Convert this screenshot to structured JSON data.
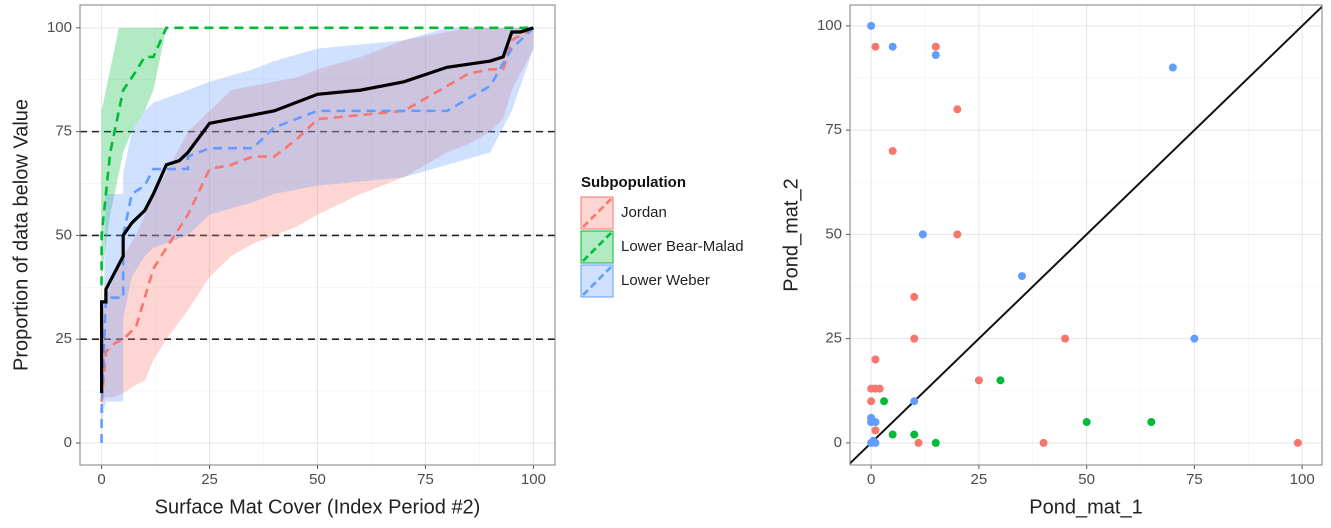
{
  "chart_data": [
    {
      "type": "line",
      "xlabel": "Surface Mat Cover (Index Period #2)",
      "ylabel": "Proportion of data below Value",
      "xlim": [
        -5,
        105
      ],
      "ylim": [
        -5.3,
        105.5
      ],
      "xticks": [
        0,
        25,
        50,
        75,
        100
      ],
      "yticks": [
        0,
        25,
        50,
        75,
        100
      ],
      "grid": true,
      "minor_grid": true,
      "hlines": [
        25,
        50,
        75
      ],
      "legend_title": "Subpopulation",
      "legend": "right",
      "series": [
        {
          "name": "Jordan",
          "color": "#F8766D",
          "linestyle": "dashed",
          "x": [
            0,
            1,
            3,
            5,
            8,
            10,
            12,
            15,
            20,
            25,
            30,
            35,
            40,
            45,
            50,
            60,
            70,
            75,
            80,
            85,
            90,
            93,
            95,
            100
          ],
          "values": [
            10,
            22,
            24,
            25,
            28,
            35,
            42,
            47,
            55,
            66,
            67,
            69,
            69,
            73,
            78,
            79,
            80,
            83,
            86,
            89,
            90,
            90,
            97,
            100
          ],
          "upper": [
            30,
            35,
            40,
            45,
            50,
            55,
            60,
            65,
            75,
            80,
            85,
            86,
            87,
            88,
            90,
            93,
            97,
            98,
            99,
            100,
            100,
            100,
            100,
            100
          ],
          "lower": [
            10,
            11,
            11,
            12,
            14,
            15,
            20,
            25,
            32,
            40,
            45,
            48,
            50,
            52,
            55,
            60,
            64,
            67,
            70,
            72,
            75,
            78,
            85,
            95
          ]
        },
        {
          "name": "Lower Bear-Malad",
          "color": "#00BA38",
          "linestyle": "dashed",
          "x": [
            0,
            0,
            1,
            2,
            3,
            4,
            5,
            7,
            10,
            12,
            15,
            100
          ],
          "values": [
            38,
            50,
            60,
            70,
            75,
            80,
            85,
            88,
            93,
            93,
            100,
            100
          ],
          "upper": [
            60,
            80,
            85,
            90,
            95,
            100,
            100,
            100,
            100,
            100,
            100,
            100
          ],
          "lower": [
            38,
            40,
            48,
            55,
            60,
            65,
            70,
            75,
            80,
            85,
            100,
            100
          ]
        },
        {
          "name": "Lower Weber",
          "color": "#619CFF",
          "linestyle": "dashed",
          "x": [
            0,
            0,
            1,
            5,
            5,
            7,
            10,
            12,
            20,
            20,
            25,
            35,
            40,
            50,
            70,
            80,
            90,
            95,
            100
          ],
          "values": [
            0,
            8,
            35,
            35,
            50,
            60,
            62,
            66,
            66,
            69,
            71,
            71,
            76,
            80,
            80,
            80,
            86,
            95,
            100
          ],
          "upper": [
            0,
            10,
            60,
            60,
            65,
            75,
            80,
            82,
            85,
            85,
            87,
            90,
            92,
            95,
            97,
            100,
            100,
            100,
            100
          ],
          "lower": [
            0,
            5,
            10,
            10,
            30,
            40,
            45,
            47,
            50,
            50,
            55,
            58,
            60,
            62,
            64,
            67,
            70,
            80,
            95
          ]
        },
        {
          "color": "#000000",
          "linestyle": "solid",
          "x": [
            0,
            0,
            1,
            1,
            3,
            5,
            5,
            7,
            10,
            12,
            15,
            18,
            20,
            25,
            35,
            40,
            50,
            60,
            70,
            80,
            90,
            93,
            95,
            97,
            100
          ],
          "values": [
            12,
            34,
            34,
            37,
            41,
            45,
            50,
            53,
            56,
            60,
            67,
            68,
            70,
            77,
            79,
            80,
            84,
            85,
            87,
            90.5,
            92,
            93,
            99,
            99,
            100
          ]
        }
      ]
    },
    {
      "type": "scatter",
      "xlabel": "Pond_mat_1",
      "ylabel": "Pond_mat_2",
      "xlim": [
        -4.9,
        104.6
      ],
      "ylim": [
        -5.3,
        105
      ],
      "xticks": [
        0,
        25,
        50,
        75,
        100
      ],
      "yticks": [
        0,
        25,
        50,
        75,
        100
      ],
      "grid": true,
      "minor_grid": true,
      "identity_line": true,
      "series": [
        {
          "color": "#F8766D",
          "x": [
            1,
            15,
            20,
            5,
            20,
            10,
            10,
            45,
            25,
            1,
            0,
            1,
            2,
            0,
            1,
            11,
            40,
            99
          ],
          "values": [
            95,
            95,
            80,
            70,
            50,
            35,
            25,
            25,
            15,
            20,
            13,
            13,
            13,
            10,
            3,
            0,
            0,
            0
          ]
        },
        {
          "color": "#00BA38",
          "x": [
            0,
            3,
            5,
            10,
            15,
            30,
            50,
            65
          ],
          "values": [
            5,
            10,
            2,
            2,
            0,
            15,
            5,
            5
          ]
        },
        {
          "color": "#619CFF",
          "x": [
            0,
            5,
            15,
            70,
            12,
            35,
            75,
            10,
            0,
            1,
            0,
            1,
            0.5,
            0
          ],
          "values": [
            100,
            95,
            93,
            90,
            50,
            40,
            25,
            10,
            6,
            5,
            0,
            0,
            0.5,
            5
          ]
        }
      ]
    }
  ]
}
